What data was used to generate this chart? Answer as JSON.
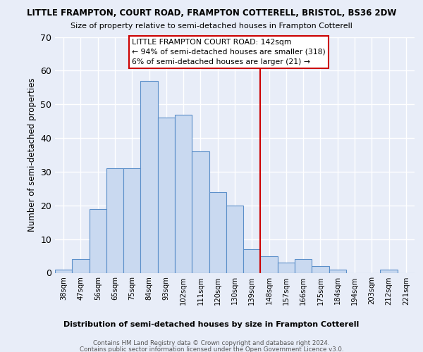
{
  "title": "LITTLE FRAMPTON, COURT ROAD, FRAMPTON COTTERELL, BRISTOL, BS36 2DW",
  "subtitle": "Size of property relative to semi-detached houses in Frampton Cotterell",
  "xlabel": "Distribution of semi-detached houses by size in Frampton Cotterell",
  "ylabel": "Number of semi-detached properties",
  "bar_labels": [
    "38sqm",
    "47sqm",
    "56sqm",
    "65sqm",
    "75sqm",
    "84sqm",
    "93sqm",
    "102sqm",
    "111sqm",
    "120sqm",
    "130sqm",
    "139sqm",
    "148sqm",
    "157sqm",
    "166sqm",
    "175sqm",
    "184sqm",
    "194sqm",
    "203sqm",
    "212sqm",
    "221sqm"
  ],
  "bar_values": [
    1,
    4,
    19,
    31,
    31,
    57,
    46,
    47,
    36,
    24,
    20,
    7,
    5,
    3,
    4,
    2,
    1,
    0,
    0,
    1,
    0
  ],
  "bar_color": "#c9d9f0",
  "bar_edge_color": "#5b8fc9",
  "ylim": [
    0,
    70
  ],
  "yticks": [
    0,
    10,
    20,
    30,
    40,
    50,
    60,
    70
  ],
  "vline_x_bar_index": 11.5,
  "vline_color": "#cc0000",
  "annotation_title": "LITTLE FRAMPTON COURT ROAD: 142sqm",
  "annotation_line1": "← 94% of semi-detached houses are smaller (318)",
  "annotation_line2": "6% of semi-detached houses are larger (21) →",
  "footer_line1": "Contains HM Land Registry data © Crown copyright and database right 2024.",
  "footer_line2": "Contains public sector information licensed under the Open Government Licence v3.0.",
  "background_color": "#e8edf8",
  "grid_color": "#ffffff"
}
